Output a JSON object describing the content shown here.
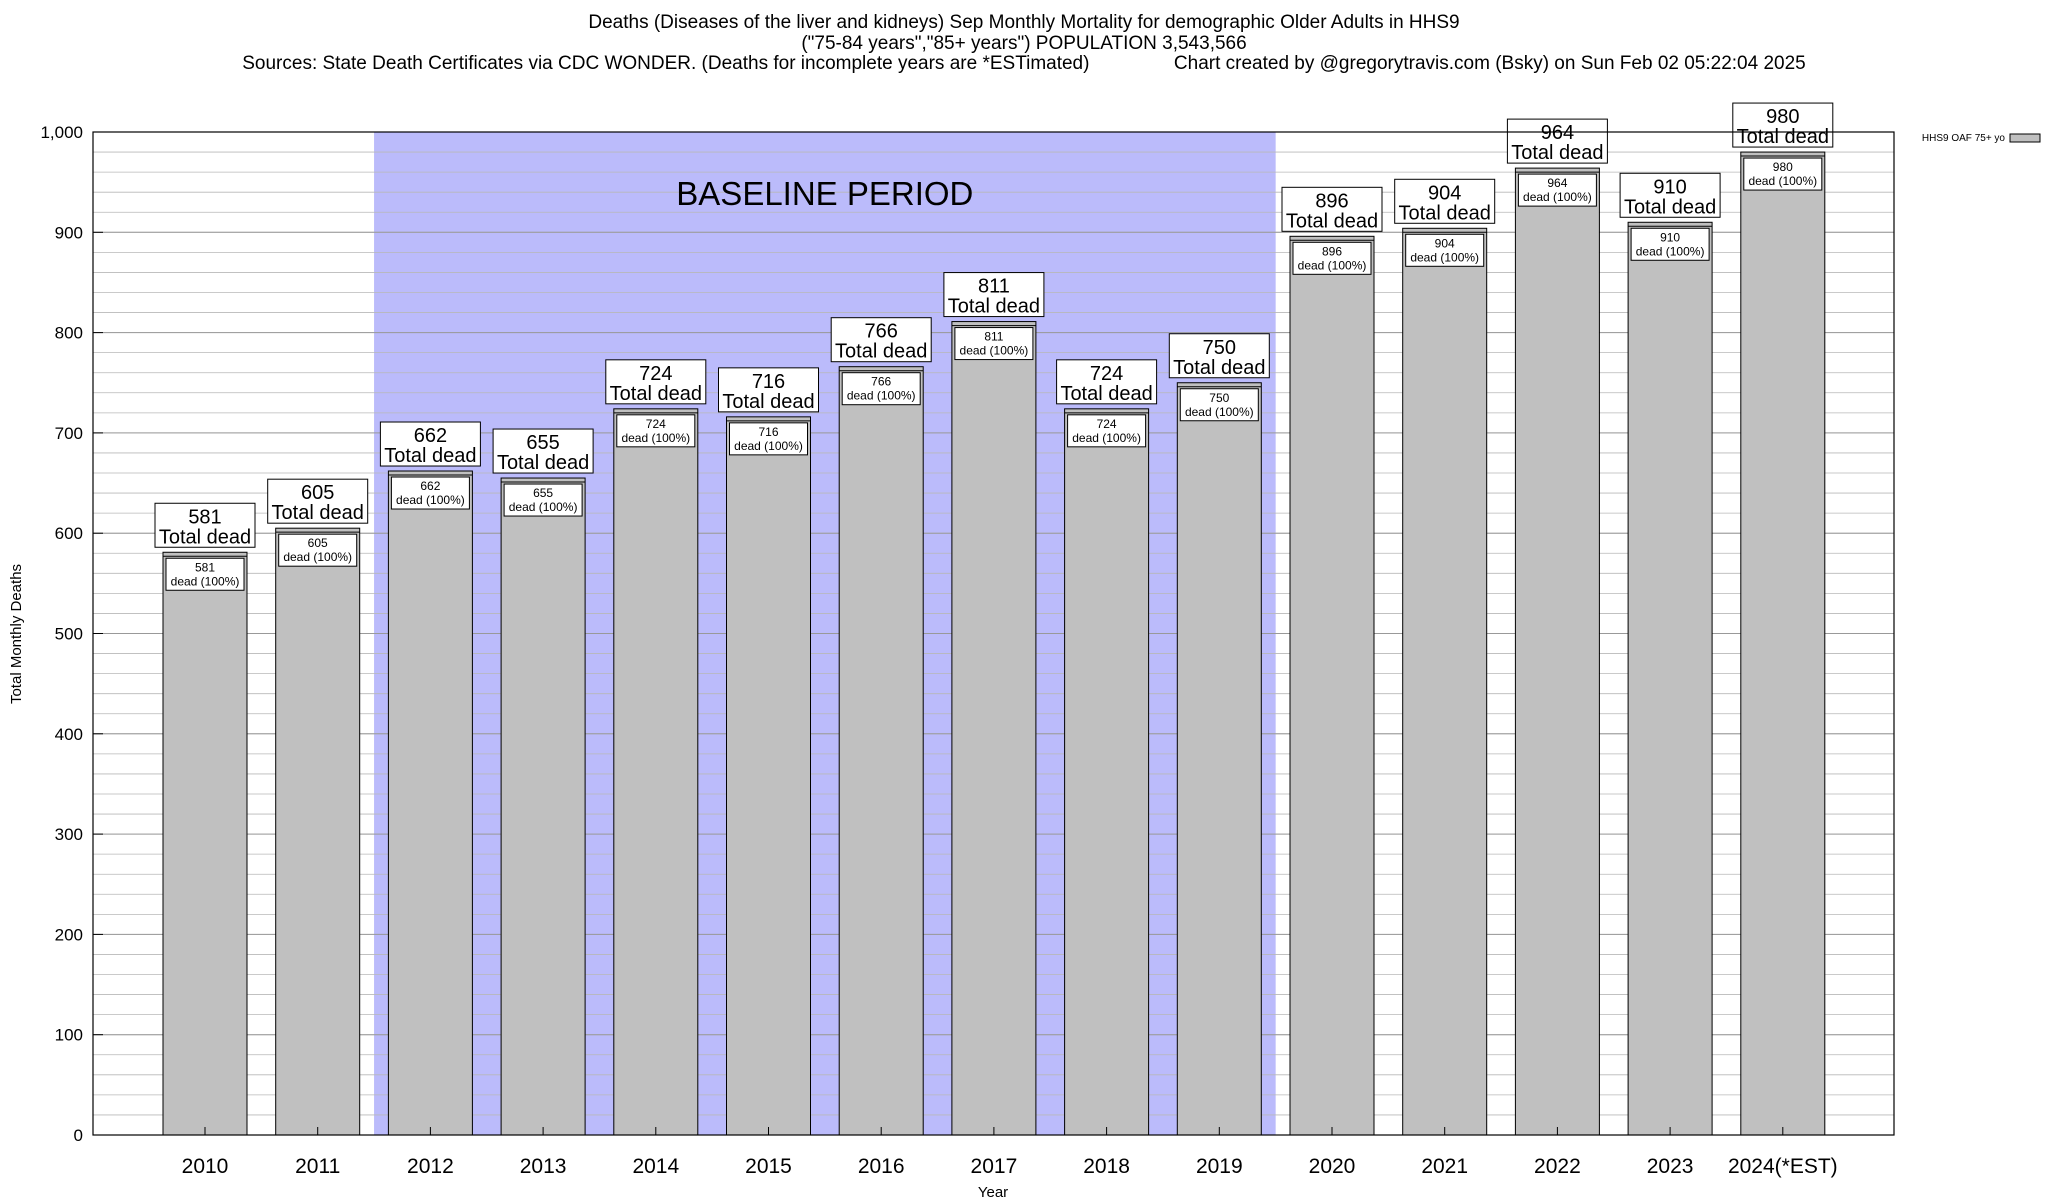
{
  "chart_data": {
    "type": "bar",
    "title_lines": [
      "Deaths (Diseases of the liver and kidneys) Sep Monthly Mortality for demographic Older Adults in HHS9",
      "(\"75-84 years\",\"85+ years\") POPULATION 3,543,566",
      "Sources: State Death Certificates via CDC WONDER. (Deaths for incomplete years are *ESTimated)                Chart created by @gregorytravis.com (Bsky) on Sun Feb 02 05:22:04 2025"
    ],
    "xlabel": "Year",
    "ylabel": "Total Monthly Deaths",
    "ylim": [
      0,
      1000
    ],
    "yticks": [
      0,
      100,
      200,
      300,
      400,
      500,
      600,
      700,
      800,
      900,
      1000
    ],
    "ytick_labels": [
      "0",
      "100",
      "200",
      "300",
      "400",
      "500",
      "600",
      "700",
      "800",
      "900",
      "1,000"
    ],
    "minor_grid_step": 20,
    "grid": true,
    "categories": [
      "2010",
      "2011",
      "2012",
      "2013",
      "2014",
      "2015",
      "2016",
      "2017",
      "2018",
      "2019",
      "2020",
      "2021",
      "2022",
      "2023",
      "2024(*EST)"
    ],
    "series": [
      {
        "name": "HHS9 OAF 75+ yo",
        "values": [
          581,
          605,
          662,
          655,
          724,
          716,
          766,
          811,
          724,
          750,
          896,
          904,
          964,
          910,
          980
        ],
        "color": "#c0c0c0"
      }
    ],
    "total_label_suffix": "Total dead",
    "inner_label_suffix": "dead (100%)",
    "baseline": {
      "label": "BASELINE PERIOD",
      "start": "2012",
      "end": "2019",
      "color": "#bbbbfb"
    },
    "legend": {
      "placement": "top-right",
      "label": "HHS9 OAF 75+ yo"
    }
  }
}
